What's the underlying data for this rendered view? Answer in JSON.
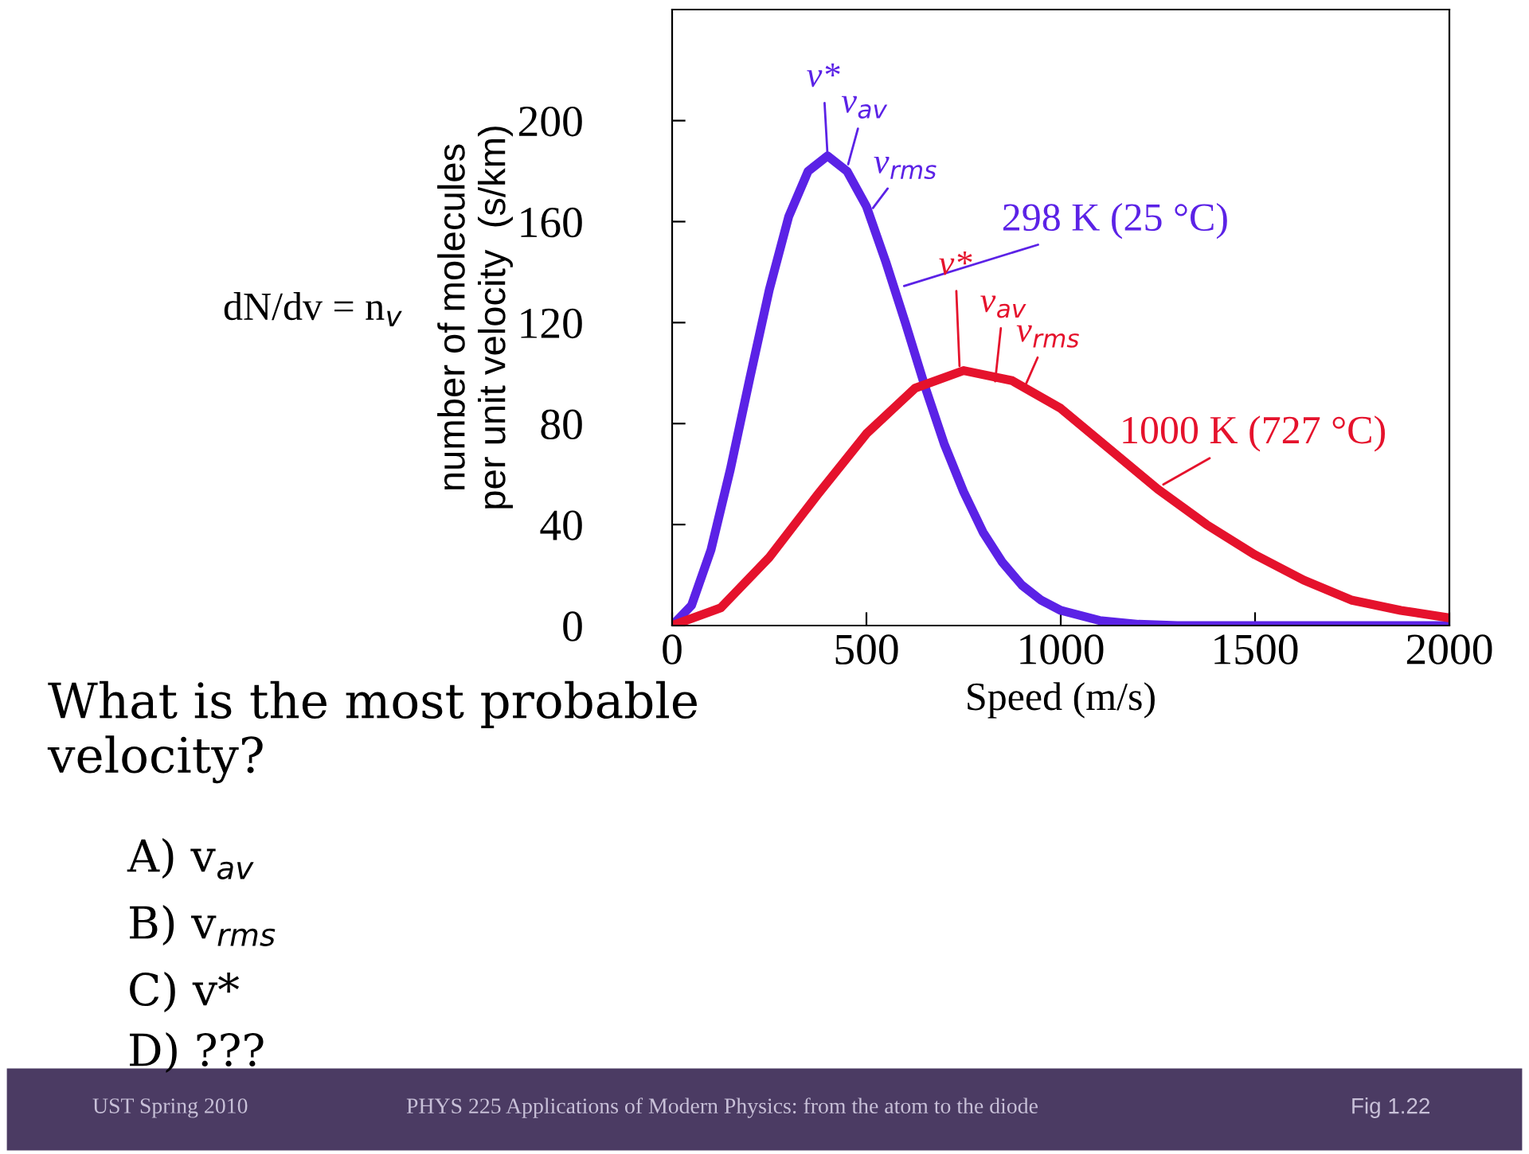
{
  "chart_data": {
    "type": "line",
    "xlabel": "Speed (m/s)",
    "ylabel": "number of molecules\nper unit velocity  (s/km)",
    "xlim": [
      0,
      2000
    ],
    "ylim": [
      0,
      244
    ],
    "xticks": [
      0,
      500,
      1000,
      1500,
      2000
    ],
    "yticks": [
      0,
      40,
      80,
      120,
      160,
      200
    ],
    "grid": false,
    "legend": false,
    "marker": "none",
    "line_style": "solid",
    "series": [
      {
        "color": "#5b22e6",
        "x": [
          0,
          50,
          100,
          150,
          200,
          250,
          300,
          350,
          400,
          450,
          500,
          550,
          600,
          650,
          700,
          750,
          800,
          850,
          900,
          950,
          1000,
          1100,
          1200,
          1300,
          1500,
          1750,
          2000
        ],
        "values": [
          0,
          8,
          30,
          62,
          98,
          133,
          162,
          180,
          186,
          180,
          166,
          144,
          120,
          95,
          72,
          53,
          37,
          25,
          16,
          10,
          6,
          2,
          0.5,
          0,
          0,
          0,
          0
        ]
      },
      {
        "color": "#e5122c",
        "x": [
          0,
          125,
          250,
          375,
          500,
          625,
          750,
          875,
          1000,
          1125,
          1250,
          1375,
          1500,
          1625,
          1750,
          1875,
          2000
        ],
        "values": [
          0,
          7,
          27,
          52,
          76,
          94,
          101,
          97,
          86,
          70,
          54,
          40,
          28,
          18,
          10,
          6,
          3
        ]
      }
    ],
    "annotations": [
      {
        "text": "v*",
        "x": 400,
        "y": 186
      },
      {
        "text": "v$_{av}$",
        "x": 450,
        "y": 181
      },
      {
        "text": "v$_{rms}$",
        "x": 510,
        "y": 164
      },
      {
        "text": "298 K (25 °C)",
        "x": 586,
        "y": 134
      },
      {
        "text": "v*",
        "x": 740,
        "y": 101
      },
      {
        "text": "v$_{av}$",
        "x": 830,
        "y": 95
      },
      {
        "text": "v$_{rms}$",
        "x": 900,
        "y": 92
      },
      {
        "text": "1000 K (727 °C)",
        "x": 1254,
        "y": 55
      },
      "dN/dv = n$_{v}$",
      "What is the most probable\nvelocity?",
      "A) v$_{av}$",
      "B) v$_{rms}$",
      "C) v*",
      "D) ???",
      "UST Spring 2010",
      "PHYS 225 Applications of Modern Physics: from the atom to the diode",
      "Fig 1.22"
    ]
  }
}
